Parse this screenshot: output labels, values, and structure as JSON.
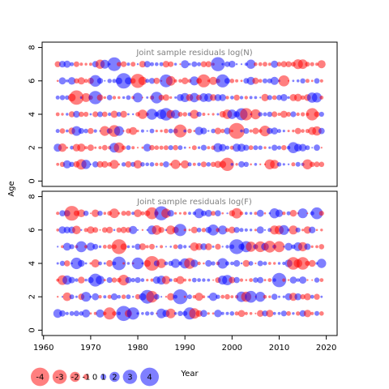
{
  "chart_data": {
    "type": "scatter",
    "subtype": "bubble-residuals",
    "panels": [
      {
        "title": "Joint sample residuals log(N)",
        "seed": 11
      },
      {
        "title": "Joint sample residuals log(F)",
        "seed": 29
      }
    ],
    "xlabel": "Year",
    "ylabel": "Age",
    "xlim": [
      1959.7,
      2022.3
    ],
    "ylim": [
      -0.32,
      8.32
    ],
    "x_ticks": [
      1960,
      1970,
      1980,
      1990,
      2000,
      2010,
      2020
    ],
    "y_ticks": [
      0,
      2,
      4,
      6,
      8
    ],
    "years": [
      1963,
      2019
    ],
    "ages": [
      1,
      2,
      3,
      4,
      5,
      6,
      7
    ],
    "positive_color": "#0000ff",
    "negative_color": "#ff0000",
    "legend": {
      "values": [
        -4,
        -3,
        -2,
        -1,
        0,
        1,
        2,
        3,
        4
      ],
      "labels": [
        "-4",
        "-3",
        "-2",
        "-1",
        "0",
        "1",
        "2",
        "3",
        "4"
      ]
    }
  }
}
